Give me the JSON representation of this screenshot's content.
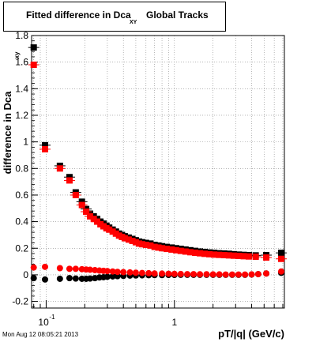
{
  "title": {
    "main": "Fitted difference in Dca",
    "subscript": "XY",
    "suffix": "Global Tracks"
  },
  "timestamp": "Mon Aug 12 08:05:21 2013",
  "colors": {
    "series1": "#000000",
    "series2": "#ff0000",
    "grid": "#888888"
  },
  "chart_data": {
    "type": "scatter",
    "xlabel": "pT/|q| (GeV/c)",
    "ylabel": "difference in Dca",
    "ylabel_sub": "xy",
    "xscale": "log",
    "xlim": [
      0.077,
      7.2
    ],
    "ylim": [
      -0.25,
      1.8
    ],
    "grid": true,
    "xtick_labels": [
      "10",
      "-1",
      "1"
    ],
    "ytick_labels": [
      "-0.2",
      "0",
      "0.2",
      "0.4",
      "0.6",
      "0.8",
      "1",
      "1.2",
      "1.4",
      "1.6",
      "1.8"
    ],
    "yticks": [
      -0.2,
      0,
      0.2,
      0.4,
      0.6,
      0.8,
      1,
      1.2,
      1.4,
      1.6,
      1.8
    ],
    "series": [
      {
        "marker": "square",
        "color": "#000000",
        "x": [
          0.08,
          0.098,
          0.128,
          0.152,
          0.17,
          0.19,
          0.205,
          0.22,
          0.235,
          0.25,
          0.265,
          0.28,
          0.295,
          0.31,
          0.33,
          0.35,
          0.37,
          0.39,
          0.41,
          0.44,
          0.47,
          0.5,
          0.53,
          0.56,
          0.6,
          0.65,
          0.7,
          0.75,
          0.8,
          0.87,
          0.95,
          1.03,
          1.12,
          1.22,
          1.33,
          1.45,
          1.58,
          1.72,
          1.87,
          2.04,
          2.23,
          2.44,
          2.66,
          2.9,
          3.18,
          3.47,
          3.8,
          4.3,
          5.2,
          6.8
        ],
        "y": [
          1.71,
          0.975,
          0.82,
          0.735,
          0.62,
          0.55,
          0.495,
          0.46,
          0.44,
          0.42,
          0.4,
          0.385,
          0.37,
          0.355,
          0.34,
          0.325,
          0.31,
          0.3,
          0.29,
          0.28,
          0.27,
          0.26,
          0.25,
          0.245,
          0.24,
          0.235,
          0.225,
          0.22,
          0.215,
          0.21,
          0.205,
          0.2,
          0.195,
          0.19,
          0.185,
          0.18,
          0.175,
          0.172,
          0.168,
          0.165,
          0.162,
          0.16,
          0.158,
          0.155,
          0.152,
          0.15,
          0.148,
          0.146,
          0.148,
          0.165
        ]
      },
      {
        "marker": "square",
        "color": "#ff0000",
        "x": [
          0.08,
          0.098,
          0.128,
          0.152,
          0.17,
          0.19,
          0.205,
          0.22,
          0.235,
          0.25,
          0.265,
          0.28,
          0.295,
          0.31,
          0.33,
          0.35,
          0.37,
          0.39,
          0.41,
          0.44,
          0.47,
          0.5,
          0.53,
          0.56,
          0.6,
          0.65,
          0.7,
          0.75,
          0.8,
          0.87,
          0.95,
          1.03,
          1.12,
          1.22,
          1.33,
          1.45,
          1.58,
          1.72,
          1.87,
          2.04,
          2.23,
          2.44,
          2.66,
          2.9,
          3.18,
          3.47,
          3.8,
          4.3,
          5.2,
          6.8
        ],
        "y": [
          1.58,
          0.945,
          0.8,
          0.71,
          0.6,
          0.525,
          0.475,
          0.44,
          0.42,
          0.4,
          0.38,
          0.365,
          0.35,
          0.34,
          0.325,
          0.31,
          0.295,
          0.285,
          0.275,
          0.265,
          0.255,
          0.245,
          0.235,
          0.23,
          0.225,
          0.22,
          0.21,
          0.205,
          0.2,
          0.195,
          0.19,
          0.185,
          0.18,
          0.175,
          0.17,
          0.166,
          0.162,
          0.158,
          0.155,
          0.152,
          0.15,
          0.148,
          0.146,
          0.144,
          0.142,
          0.14,
          0.138,
          0.136,
          0.13,
          0.12
        ]
      },
      {
        "marker": "circle",
        "color": "#000000",
        "x": [
          0.08,
          0.098,
          0.128,
          0.152,
          0.17,
          0.19,
          0.205,
          0.22,
          0.24,
          0.26,
          0.28,
          0.3,
          0.33,
          0.36,
          0.4,
          0.45,
          0.5,
          0.56,
          0.63,
          0.7,
          0.8,
          0.9,
          1.0,
          1.12,
          1.26,
          1.41,
          1.58,
          1.78,
          2.0,
          2.24,
          2.51,
          2.82,
          3.16,
          3.55,
          4.0,
          4.5,
          5.2,
          6.8
        ],
        "y": [
          -0.025,
          -0.035,
          -0.03,
          -0.025,
          -0.028,
          -0.03,
          -0.03,
          -0.028,
          -0.025,
          -0.02,
          -0.018,
          -0.015,
          -0.012,
          -0.01,
          -0.008,
          -0.006,
          -0.005,
          -0.004,
          -0.003,
          -0.002,
          -0.002,
          -0.001,
          -0.001,
          0.0,
          0.0,
          0.0,
          0.0,
          0.0,
          0.0,
          0.0,
          0.0,
          0.0,
          0.0,
          0.0,
          0.002,
          0.005,
          0.01,
          0.015
        ]
      },
      {
        "marker": "circle",
        "color": "#ff0000",
        "x": [
          0.08,
          0.098,
          0.128,
          0.152,
          0.17,
          0.19,
          0.205,
          0.22,
          0.24,
          0.26,
          0.28,
          0.3,
          0.33,
          0.36,
          0.4,
          0.45,
          0.5,
          0.56,
          0.63,
          0.7,
          0.8,
          0.9,
          1.0,
          1.12,
          1.26,
          1.41,
          1.58,
          1.78,
          2.0,
          2.24,
          2.51,
          2.82,
          3.16,
          3.55,
          4.0,
          4.5,
          5.2,
          6.8
        ],
        "y": [
          0.055,
          0.06,
          0.05,
          0.045,
          0.045,
          0.042,
          0.04,
          0.038,
          0.035,
          0.032,
          0.03,
          0.028,
          0.025,
          0.022,
          0.02,
          0.018,
          0.016,
          0.014,
          0.012,
          0.01,
          0.009,
          0.008,
          0.007,
          0.006,
          0.005,
          0.005,
          0.004,
          0.004,
          0.003,
          0.003,
          0.002,
          0.002,
          0.002,
          0.002,
          0.003,
          0.005,
          0.01,
          0.025
        ]
      }
    ]
  }
}
